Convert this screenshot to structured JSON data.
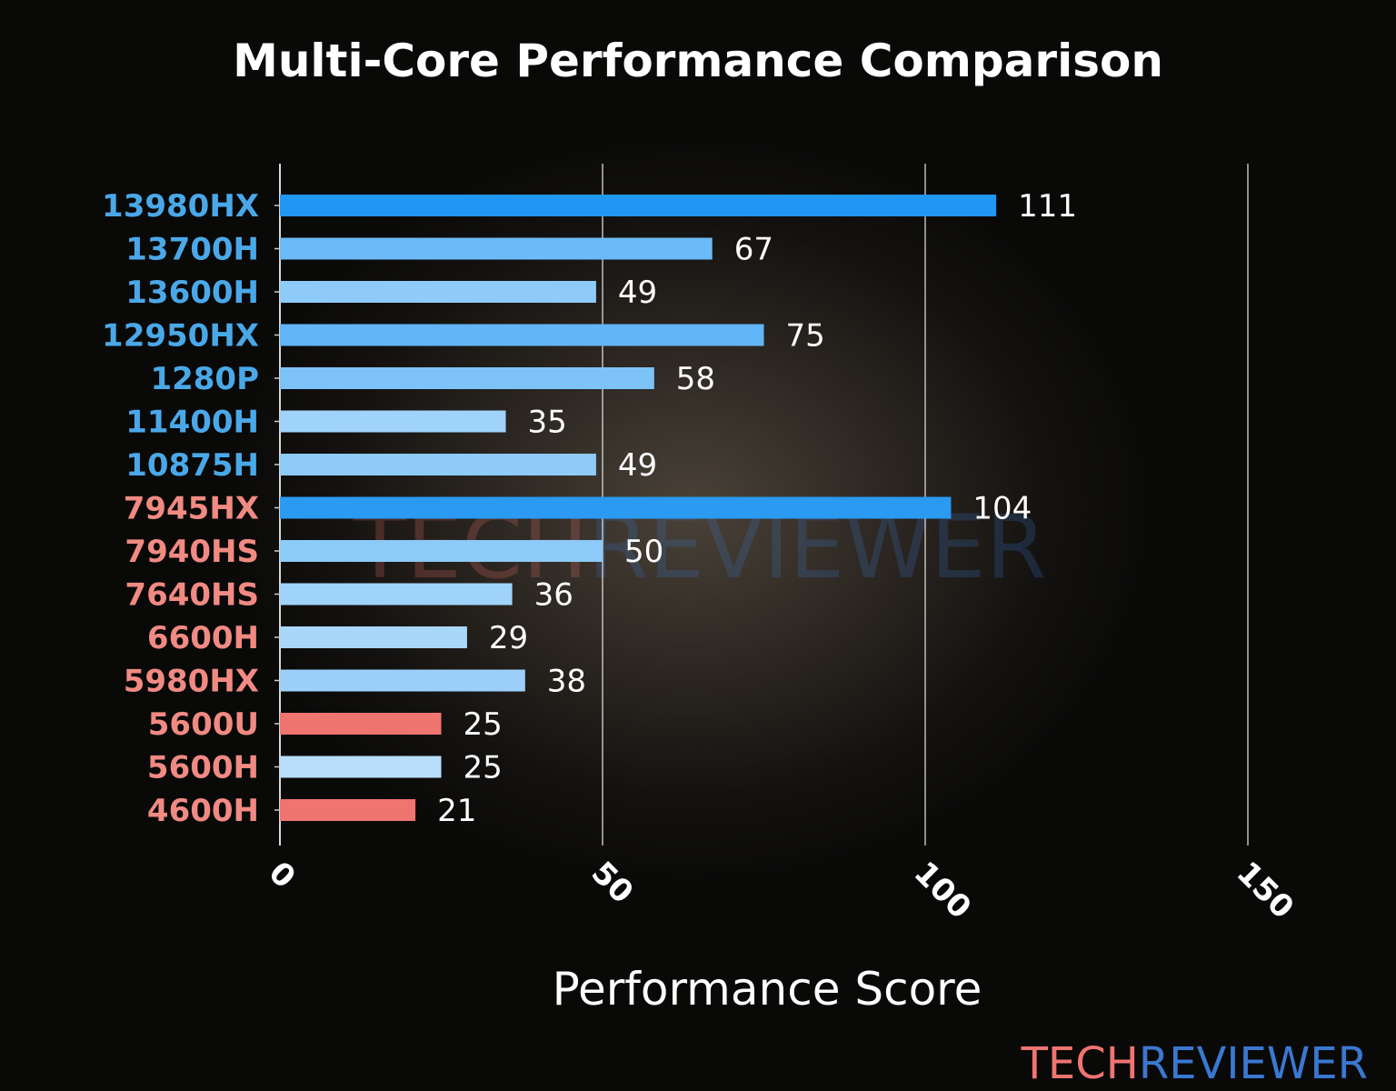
{
  "chart_data": {
    "type": "bar",
    "orientation": "horizontal",
    "title": "Multi-Core Performance Comparison",
    "xlabel": "Performance Score",
    "ylabel": "",
    "xlim": [
      0,
      150
    ],
    "xticks": [
      0,
      50,
      100,
      150
    ],
    "grid": "vertical",
    "categories": [
      "13980HX",
      "13700H",
      "13600H",
      "12950HX",
      "1280P",
      "11400H",
      "10875H",
      "7945HX",
      "7940HS",
      "7640HS",
      "6600H",
      "5980HX",
      "5600U",
      "5600H",
      "4600H"
    ],
    "values": [
      111,
      67,
      49,
      75,
      58,
      35,
      49,
      104,
      50,
      36,
      29,
      38,
      25,
      25,
      21
    ],
    "bar_colors": [
      "#2196f3",
      "#6cbaf7",
      "#8ecbf8",
      "#62b5f6",
      "#7dc3f8",
      "#a0d3fa",
      "#8ecbf8",
      "#2a9af3",
      "#8ccaf8",
      "#a0d3fa",
      "#a8d7fa",
      "#9cd0fa",
      "#f07470",
      "#b8defc",
      "#f07470"
    ],
    "label_colors": [
      "#4aa8e8",
      "#4aa8e8",
      "#4aa8e8",
      "#4aa8e8",
      "#4aa8e8",
      "#4aa8e8",
      "#4aa8e8",
      "#f08a82",
      "#f08a82",
      "#f08a82",
      "#f08a82",
      "#f08a82",
      "#f08a82",
      "#f08a82",
      "#f08a82"
    ]
  },
  "watermark": {
    "part1": "TECH",
    "part2": "REVIEWER",
    "color1": "#f07470",
    "color2": "#3a78d0"
  }
}
